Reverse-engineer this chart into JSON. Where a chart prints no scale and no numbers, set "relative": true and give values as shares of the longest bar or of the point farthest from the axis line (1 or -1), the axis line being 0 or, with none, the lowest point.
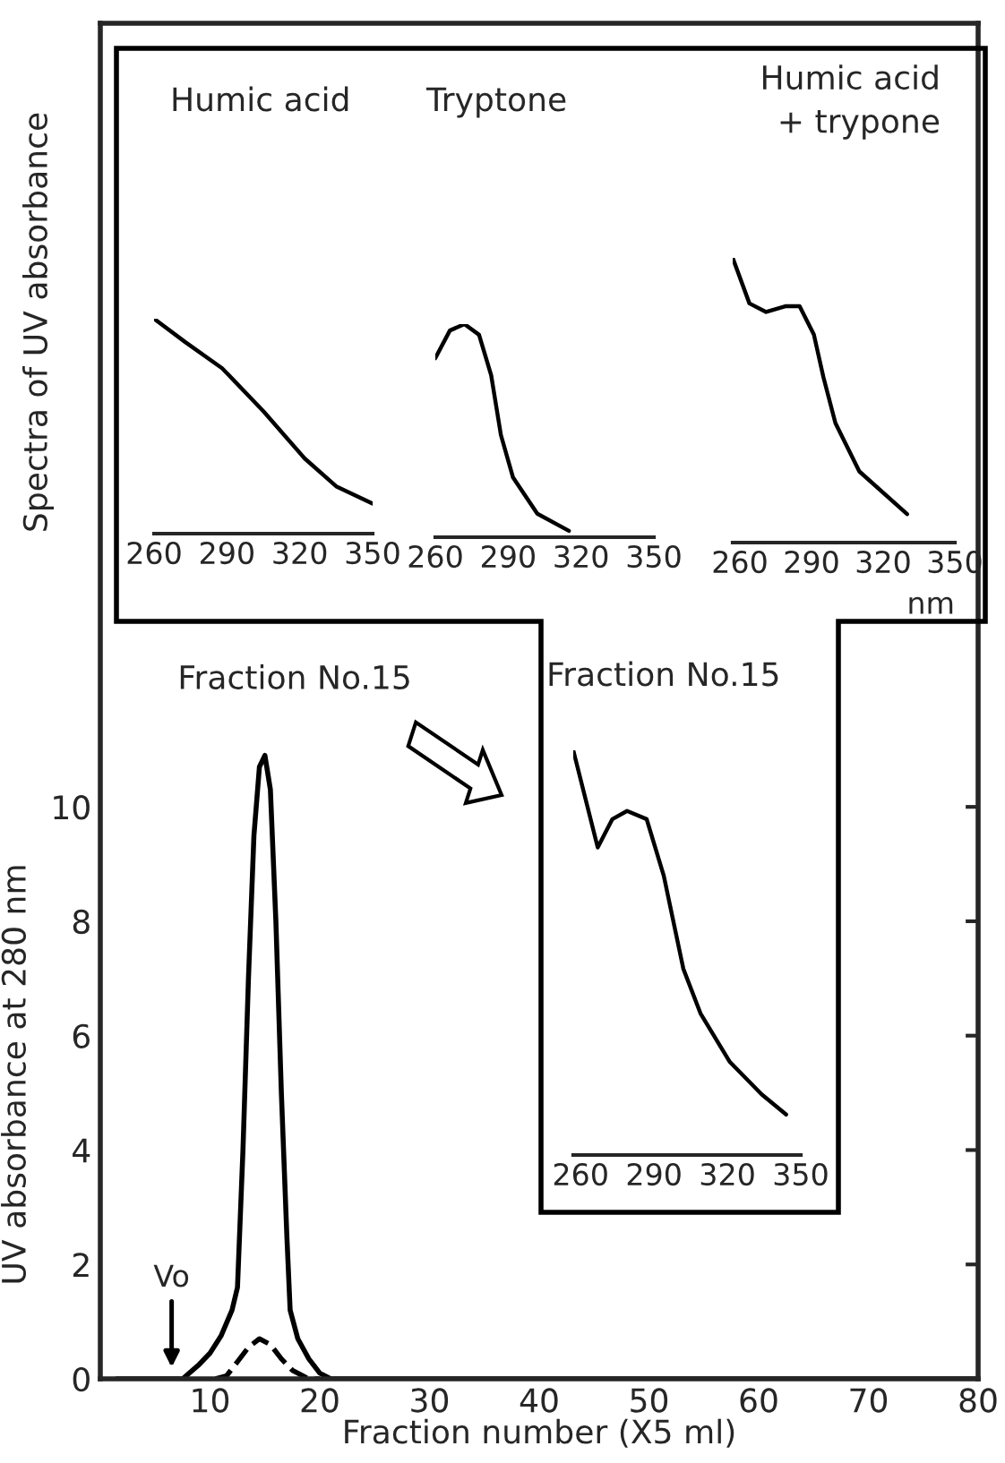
{
  "chart_data": [
    {
      "type": "line",
      "xlabel": "Fraction number (X5 ml)",
      "ylabel": "UV absorbance at 280 nm",
      "xlim": [
        0,
        80
      ],
      "ylim": [
        0,
        23.7
      ],
      "xticks": [
        10,
        20,
        30,
        40,
        50,
        60,
        70,
        80
      ],
      "yticks": [
        0,
        2,
        4,
        6,
        8,
        10
      ],
      "series": [
        {
          "color": "#000000",
          "line_style": "solid",
          "x": [
            1.5,
            7.5,
            9,
            10,
            11,
            12,
            12.5,
            13,
            13.5,
            14,
            14.5,
            15,
            15.5,
            16,
            16.5,
            17,
            17.3,
            18,
            19,
            20,
            21,
            80
          ],
          "values": [
            0,
            0,
            0.25,
            0.45,
            0.75,
            1.2,
            1.6,
            4,
            7,
            9.5,
            10.7,
            10.9,
            10.3,
            8,
            5,
            2.5,
            1.2,
            0.7,
            0.35,
            0.1,
            0,
            0
          ]
        },
        {
          "color": "#000000",
          "line_style": "dashed",
          "x": [
            10.5,
            11.5,
            12.5,
            13.5,
            14.5,
            15.5,
            16.5,
            17.5,
            19,
            20
          ],
          "values": [
            0,
            0.05,
            0.3,
            0.55,
            0.7,
            0.6,
            0.35,
            0.15,
            0,
            0
          ]
        }
      ],
      "annotations": [
        {
          "text": "Fraction No.15",
          "x": 15,
          "y": 10.9
        },
        {
          "text": "Vo",
          "x": 6.5,
          "y": 0.2
        }
      ]
    },
    {
      "type": "line",
      "relative": true,
      "title": "Humic acid",
      "ylabel": "Spectra of UV absorbance",
      "xlim": [
        260,
        350
      ],
      "xticks": [
        260,
        290,
        320,
        350
      ],
      "series": [
        {
          "color": "#000000",
          "x": [
            260,
            273,
            288,
            305,
            322,
            335,
            350
          ],
          "values": [
            1.0,
            0.89,
            0.77,
            0.57,
            0.35,
            0.22,
            0.14
          ]
        }
      ]
    },
    {
      "type": "line",
      "relative": true,
      "title": "Tryptone",
      "xlim": [
        260,
        350
      ],
      "xticks": [
        260,
        290,
        320,
        350
      ],
      "series": [
        {
          "color": "#000000",
          "x": [
            260,
            266,
            272,
            278,
            283,
            287,
            292,
            302,
            315
          ],
          "values": [
            0.84,
            0.97,
            1.0,
            0.95,
            0.76,
            0.48,
            0.28,
            0.11,
            0.03
          ]
        }
      ]
    },
    {
      "type": "line",
      "relative": true,
      "title": "Humic acid\n+ trypone",
      "xlabel": "nm",
      "xlim": [
        257,
        350
      ],
      "xticks": [
        260,
        290,
        320,
        350
      ],
      "series": [
        {
          "color": "#000000",
          "x": [
            257,
            264,
            271,
            279,
            285,
            291,
            295,
            300,
            310,
            330
          ],
          "values": [
            1.0,
            0.84,
            0.81,
            0.83,
            0.83,
            0.73,
            0.58,
            0.42,
            0.25,
            0.1
          ]
        }
      ]
    },
    {
      "type": "line",
      "relative": true,
      "title": "Fraction No.15",
      "xlim": [
        257,
        350
      ],
      "xticks": [
        260,
        290,
        320,
        350
      ],
      "series": [
        {
          "color": "#000000",
          "x": [
            257,
            262,
            267,
            273,
            279,
            287,
            294,
            302,
            309,
            321,
            334,
            344
          ],
          "values": [
            1.0,
            0.88,
            0.76,
            0.83,
            0.85,
            0.83,
            0.69,
            0.46,
            0.35,
            0.23,
            0.15,
            0.1
          ]
        }
      ]
    }
  ]
}
